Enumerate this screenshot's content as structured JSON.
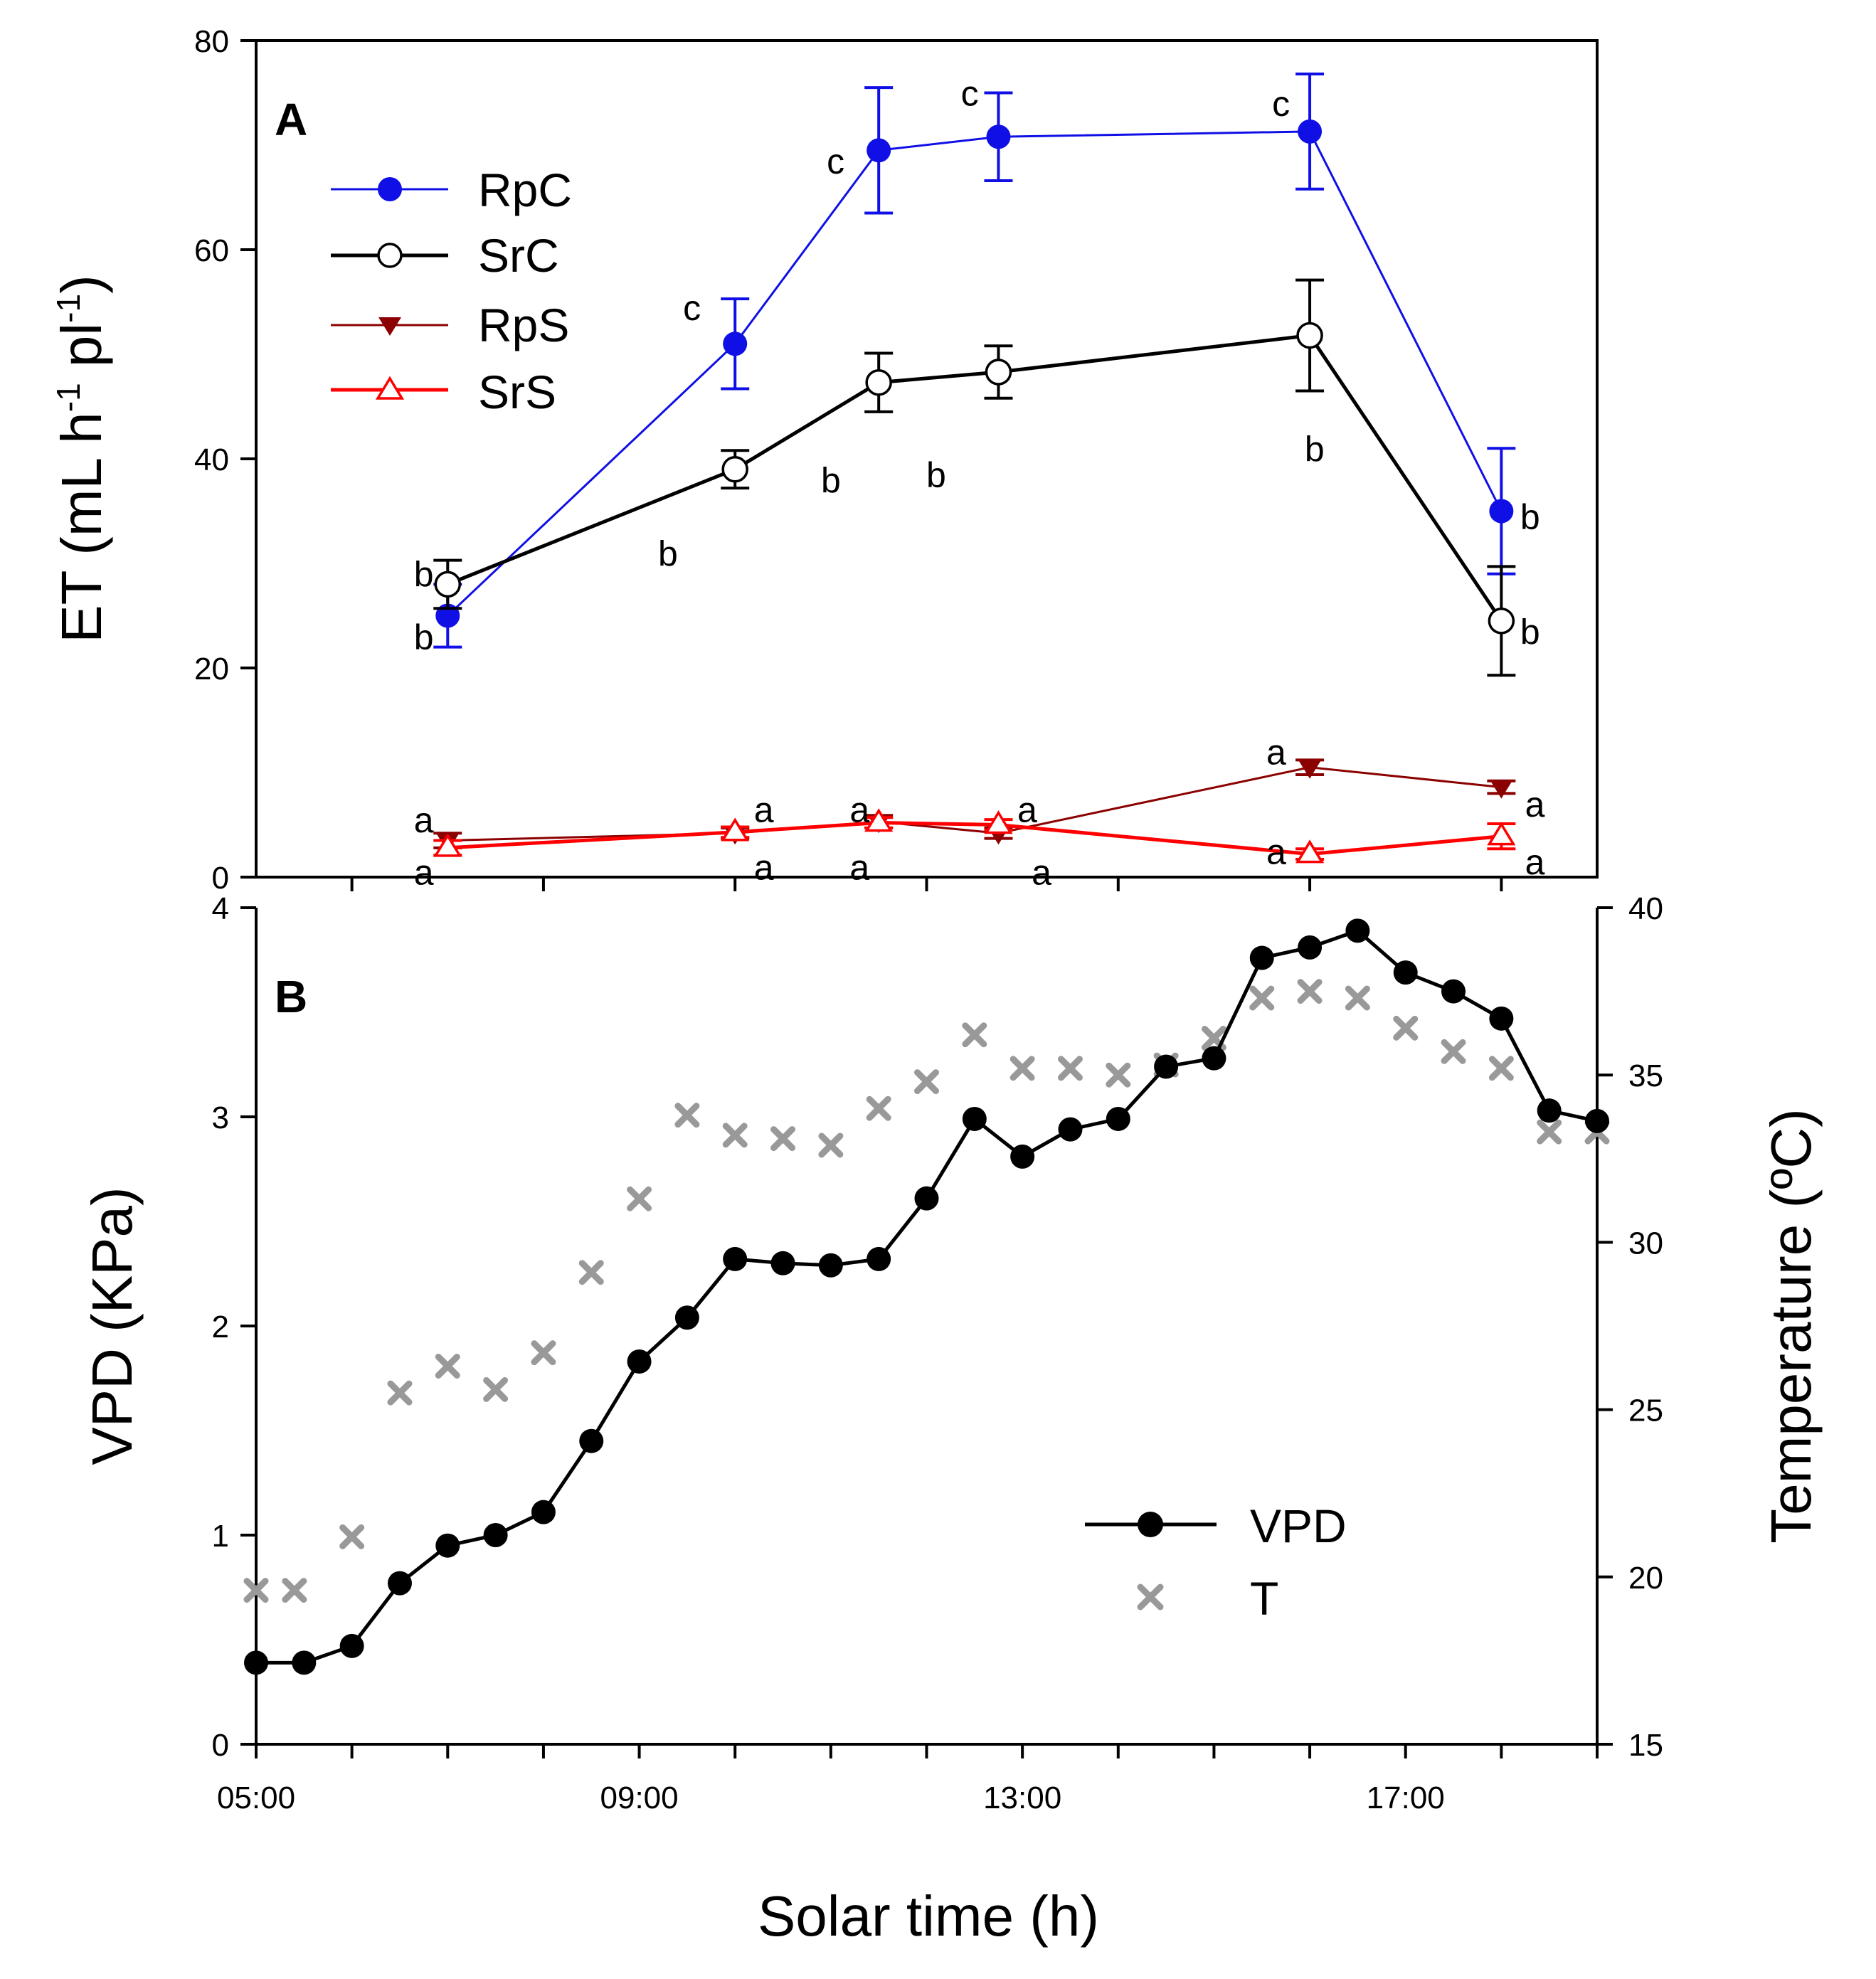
{
  "chart_data": [
    {
      "type": "line",
      "panel": "A",
      "ylabel_main": "ET (mL h",
      "ylabel_sup1": "-1",
      "ylabel_mid": " pl",
      "ylabel_sup2": "-1",
      "ylabel_end": ")",
      "ylim": [
        0,
        80
      ],
      "yticks": [
        "0",
        "20",
        "40",
        "60",
        "80"
      ],
      "x_hours": [
        7.0,
        10.0,
        11.5,
        12.75,
        16.0,
        18.0
      ],
      "series": [
        {
          "name": "RpC",
          "color": "#1010e6",
          "marker": "filled-circle",
          "values": [
            25.0,
            51.0,
            69.5,
            70.8,
            71.3,
            35.0
          ],
          "errors": [
            3.0,
            4.3,
            6.0,
            4.2,
            5.5,
            6.0
          ]
        },
        {
          "name": "SrC",
          "color": "#000000",
          "marker": "open-circle",
          "values": [
            28.0,
            39.0,
            47.3,
            48.3,
            51.8,
            24.5
          ],
          "errors": [
            2.3,
            1.8,
            2.8,
            2.5,
            5.3,
            5.2
          ]
        },
        {
          "name": "RpS",
          "color": "#8b0000",
          "marker": "filled-triangle-down",
          "values": [
            3.5,
            4.2,
            5.3,
            4.2,
            10.5,
            8.6
          ],
          "errors": [
            0.7,
            0.5,
            0.6,
            0.5,
            0.7,
            0.6
          ]
        },
        {
          "name": "SrS",
          "color": "#ff0000",
          "marker": "open-triangle-up",
          "values": [
            2.8,
            4.3,
            5.2,
            5.0,
            2.2,
            3.9
          ],
          "errors": [
            0.7,
            0.5,
            0.5,
            0.5,
            0.5,
            1.2
          ]
        }
      ],
      "annotations": [
        {
          "text": "c",
          "x": 9.55,
          "y": 54.5
        },
        {
          "text": "c",
          "x": 11.05,
          "y": 68.5
        },
        {
          "text": "c",
          "x": 12.45,
          "y": 75.0
        },
        {
          "text": "c",
          "x": 15.7,
          "y": 74.0
        },
        {
          "text": "b",
          "x": 6.75,
          "y": 29.0
        },
        {
          "text": "b",
          "x": 6.75,
          "y": 23.0
        },
        {
          "text": "b",
          "x": 9.3,
          "y": 31.0
        },
        {
          "text": "b",
          "x": 11.0,
          "y": 38.0
        },
        {
          "text": "b",
          "x": 12.1,
          "y": 38.5
        },
        {
          "text": "b",
          "x": 16.05,
          "y": 41.0
        },
        {
          "text": "b",
          "x": 18.3,
          "y": 34.5
        },
        {
          "text": "b",
          "x": 18.3,
          "y": 23.5
        },
        {
          "text": "a",
          "x": 6.75,
          "y": 5.5
        },
        {
          "text": "a",
          "x": 6.75,
          "y": 0.5
        },
        {
          "text": "a",
          "x": 10.3,
          "y": 6.5
        },
        {
          "text": "a",
          "x": 10.3,
          "y": 1.0
        },
        {
          "text": "a",
          "x": 11.3,
          "y": 6.5
        },
        {
          "text": "a",
          "x": 11.3,
          "y": 1.0
        },
        {
          "text": "a",
          "x": 13.05,
          "y": 6.5
        },
        {
          "text": "a",
          "x": 13.2,
          "y": 0.5
        },
        {
          "text": "a",
          "x": 15.65,
          "y": 12.0
        },
        {
          "text": "a",
          "x": 15.65,
          "y": 2.5
        },
        {
          "text": "a",
          "x": 18.35,
          "y": 7.0
        },
        {
          "text": "a",
          "x": 18.35,
          "y": 1.5
        }
      ]
    },
    {
      "type": "line+scatter",
      "panel": "B",
      "xlabel": "Solar time (h)",
      "xlim_hours": [
        5,
        19
      ],
      "xticks": [
        "05:00",
        "09:00",
        "13:00",
        "17:00"
      ],
      "ylabel_left": "VPD (KPa)",
      "ylim_left": [
        0,
        4
      ],
      "yticks_left": [
        "0",
        "1",
        "2",
        "3",
        "4"
      ],
      "ylabel_right": "Temperature (ºC)",
      "ylim_right": [
        15,
        40
      ],
      "yticks_right": [
        "15",
        "20",
        "25",
        "30",
        "35",
        "40"
      ],
      "series": [
        {
          "name": "VPD",
          "color": "#000000",
          "marker": "filled-circle",
          "axis": "left",
          "x": [
            5.0,
            5.5,
            6.0,
            6.5,
            7.0,
            7.5,
            8.0,
            8.5,
            9.0,
            9.5,
            10.0,
            10.5,
            11.0,
            11.5,
            12.0,
            12.5,
            13.0,
            13.5,
            14.0,
            14.5,
            15.0,
            15.5,
            16.0,
            16.5,
            17.0,
            17.5,
            18.0,
            18.5,
            19.0
          ],
          "values": [
            0.39,
            0.39,
            0.47,
            0.77,
            0.95,
            1.0,
            1.11,
            1.45,
            1.83,
            2.04,
            2.32,
            2.3,
            2.29,
            2.32,
            2.61,
            2.99,
            2.81,
            2.94,
            2.99,
            3.24,
            3.28,
            3.76,
            3.81,
            3.89,
            3.69,
            3.6,
            3.47,
            3.03,
            2.98
          ]
        },
        {
          "name": "T",
          "color": "#999999",
          "marker": "x",
          "axis": "right",
          "x": [
            5.0,
            5.4,
            6.0,
            6.5,
            7.0,
            7.5,
            8.0,
            8.5,
            9.0,
            9.5,
            10.0,
            10.5,
            11.0,
            11.5,
            12.0,
            12.5,
            13.0,
            13.5,
            14.0,
            14.5,
            15.0,
            15.5,
            16.0,
            16.5,
            17.0,
            17.5,
            18.0,
            18.5,
            19.0
          ],
          "values": [
            19.6,
            19.6,
            21.2,
            25.5,
            26.3,
            25.6,
            26.7,
            29.1,
            31.3,
            33.8,
            33.2,
            33.1,
            32.9,
            34.0,
            34.8,
            36.2,
            35.2,
            35.2,
            35.0,
            35.3,
            36.1,
            37.3,
            37.5,
            37.3,
            36.4,
            35.7,
            35.2,
            33.3,
            33.3
          ]
        }
      ]
    }
  ]
}
